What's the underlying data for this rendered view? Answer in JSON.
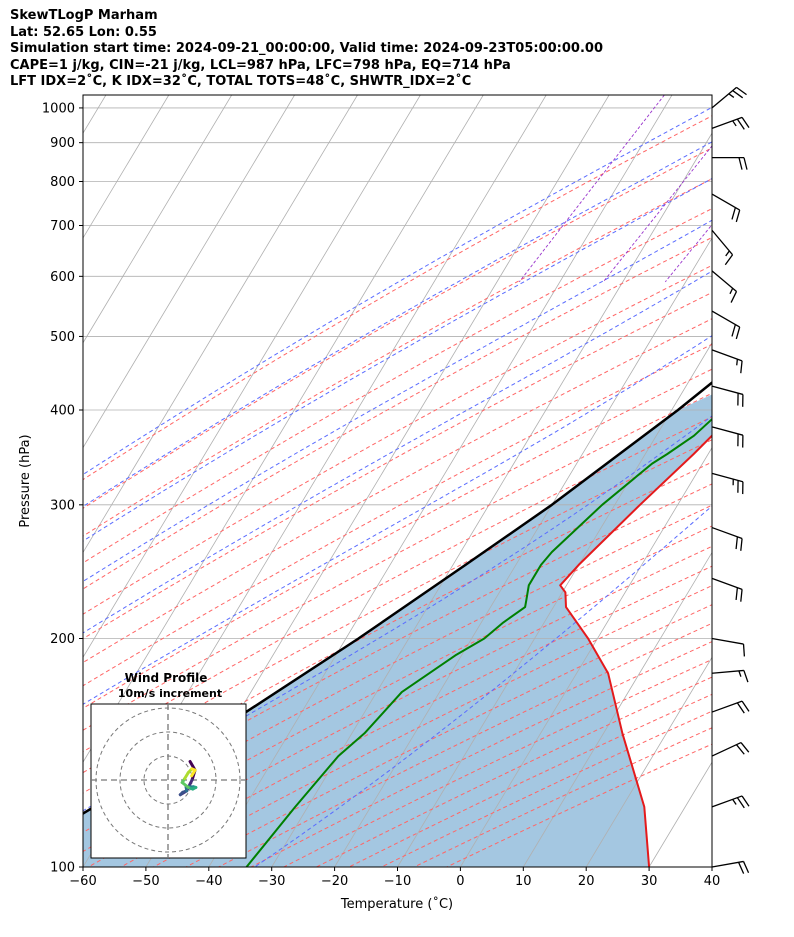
{
  "header": {
    "line1": "SkewTLogP Marham",
    "line2": "Lat: 52.65   Lon: 0.55",
    "line3": "Simulation start time: 2024-09-21_00:00:00, Valid time: 2024-09-23T05:00:00.00",
    "line4": "CAPE=1 j/kg, CIN=-21 j/kg, LCL=987 hPa, LFC=798 hPa, EQ=714 hPa",
    "line5": "LFT IDX=2˚C, K IDX=32˚C, TOTAL TOTS=48˚C, SHWTR_IDX=2˚C"
  },
  "chart_data": {
    "type": "line",
    "subtype": "skew-t log-p",
    "xlabel": "Temperature (˚C)",
    "ylabel": "Pressure (hPa)",
    "xlim": [
      -60,
      40
    ],
    "ylim": [
      1040,
      100
    ],
    "y_scale": "log",
    "grid": true,
    "x_ticks": [
      -60,
      -50,
      -40,
      -30,
      -20,
      -10,
      0,
      10,
      20,
      30,
      40
    ],
    "y_ticks": [
      1000,
      900,
      800,
      700,
      600,
      500,
      400,
      300,
      200,
      100
    ],
    "series": [
      {
        "role": "temperature",
        "color": "#e41a1c",
        "points": [
          [
            1000,
            16.5
          ],
          [
            950,
            15.5
          ],
          [
            900,
            14.3
          ],
          [
            850,
            13.0
          ],
          [
            800,
            11.8
          ],
          [
            700,
            10.3
          ],
          [
            600,
            8.0
          ],
          [
            500,
            5.2
          ],
          [
            470,
            4.5
          ],
          [
            400,
            0.5
          ],
          [
            350,
            -2.3
          ],
          [
            300,
            -6.0
          ],
          [
            250,
            -10.0
          ],
          [
            235,
            -11.0
          ],
          [
            230,
            -9.5
          ],
          [
            220,
            -8.0
          ],
          [
            200,
            -1.5
          ],
          [
            180,
            5.0
          ],
          [
            150,
            13.0
          ],
          [
            120,
            23.5
          ],
          [
            100,
            30.0
          ]
        ]
      },
      {
        "role": "dewpoint",
        "color": "#008000",
        "points": [
          [
            1000,
            15.8
          ],
          [
            950,
            14.2
          ],
          [
            900,
            13.3
          ],
          [
            850,
            12.5
          ],
          [
            800,
            11.2
          ],
          [
            700,
            9.5
          ],
          [
            600,
            6.5
          ],
          [
            500,
            3.0
          ],
          [
            450,
            -0.5
          ],
          [
            430,
            -0.8
          ],
          [
            400,
            -2.0
          ],
          [
            370,
            -4.0
          ],
          [
            350,
            -6.5
          ],
          [
            340,
            -8.0
          ],
          [
            300,
            -12.0
          ],
          [
            260,
            -15.5
          ],
          [
            250,
            -16.0
          ],
          [
            235,
            -16.0
          ],
          [
            225,
            -15.0
          ],
          [
            220,
            -14.5
          ],
          [
            210,
            -16.5
          ],
          [
            200,
            -18.0
          ],
          [
            190,
            -21.0
          ],
          [
            170,
            -26.0
          ],
          [
            150,
            -28.0
          ],
          [
            140,
            -30.0
          ],
          [
            120,
            -32.0
          ],
          [
            100,
            -34.0
          ]
        ]
      },
      {
        "role": "parcel",
        "color": "#000000",
        "points": [
          [
            1000,
            16.5
          ],
          [
            950,
            15.0
          ],
          [
            900,
            13.6
          ],
          [
            850,
            12.4
          ],
          [
            800,
            11.0
          ],
          [
            700,
            7.8
          ],
          [
            600,
            3.8
          ],
          [
            500,
            -1.5
          ],
          [
            400,
            -9.0
          ],
          [
            300,
            -20.0
          ],
          [
            250,
            -28.0
          ],
          [
            200,
            -38.0
          ],
          [
            150,
            -52.0
          ],
          [
            120,
            -64.0
          ],
          [
            100,
            -74.0
          ]
        ]
      }
    ],
    "winds": {
      "pressures": [
        100,
        120,
        140,
        160,
        180,
        200,
        240,
        280,
        330,
        380,
        430,
        480,
        540,
        610,
        690,
        770,
        860,
        940,
        1000
      ],
      "speed_ms": [
        10,
        12,
        11,
        9,
        7,
        6,
        9,
        11,
        12,
        11,
        11,
        8,
        9,
        8,
        8,
        9,
        10,
        12,
        12
      ],
      "dir_deg": [
        260,
        250,
        245,
        250,
        265,
        280,
        290,
        290,
        285,
        285,
        285,
        290,
        300,
        310,
        320,
        300,
        270,
        250,
        230
      ]
    },
    "inset": {
      "title": "Wind Profile",
      "subtitle": "10m/s increment",
      "type": "hodograph",
      "colormap": "viridis"
    }
  }
}
